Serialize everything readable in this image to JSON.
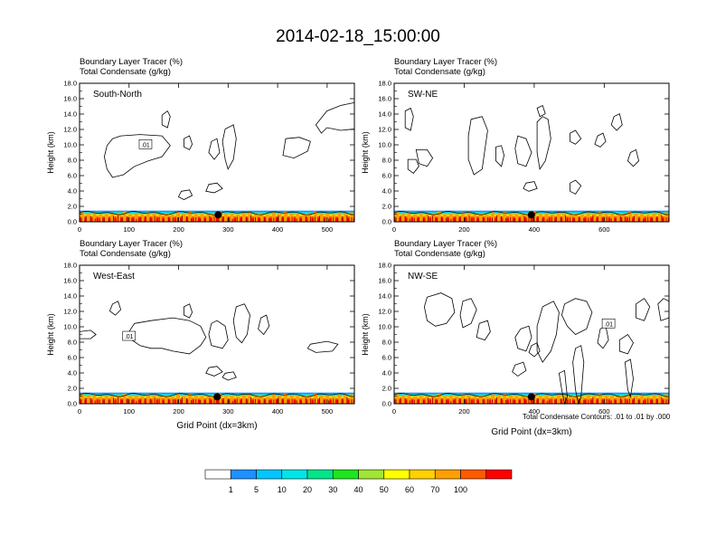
{
  "title": "2014-02-18_15:00:00",
  "subtitle_line1": "Boundary Layer Tracer   (%)",
  "subtitle_line2": "Total Condensate   (g/kg)",
  "contour_note": "Total Condensate Contours: .01 to .01 by .000",
  "colorbar": {
    "colors": [
      "#ffffff",
      "#1e90ff",
      "#00c8ff",
      "#00e6e6",
      "#00e68c",
      "#1ee61e",
      "#a0e632",
      "#ffff00",
      "#ffd200",
      "#ffa000",
      "#ff5a00",
      "#ff0000"
    ],
    "labels": [
      "1",
      "5",
      "10",
      "20",
      "30",
      "40",
      "50",
      "60",
      "70",
      "100"
    ]
  },
  "chart_data": [
    {
      "type": "contour",
      "panel_label": "South-North",
      "ylabel": "Height (km)",
      "xlabel": "",
      "xlim": [
        0,
        555
      ],
      "ylim": [
        0,
        18
      ],
      "xticks": [
        "0",
        "100",
        "200",
        "300",
        "400",
        "500"
      ],
      "yticks": [
        "0.0",
        "2.0",
        "4.0",
        "6.0",
        "8.0",
        "10.0",
        "12.0",
        "14.0",
        "16.0",
        "18.0"
      ],
      "contour_label": ".01",
      "marker_x": 280,
      "marker_y": 0.9
    },
    {
      "type": "contour",
      "panel_label": "SW-NE",
      "ylabel": "Height (km)",
      "xlabel": "",
      "xlim": [
        0,
        785
      ],
      "ylim": [
        0,
        18
      ],
      "xticks": [
        "0",
        "200",
        "400",
        "600"
      ],
      "yticks": [
        "0.0",
        "2.0",
        "4.0",
        "6.0",
        "8.0",
        "10.0",
        "12.0",
        "14.0",
        "16.0",
        "18.0"
      ],
      "contour_label": "",
      "marker_x": 392,
      "marker_y": 0.9
    },
    {
      "type": "contour",
      "panel_label": "West-East",
      "ylabel": "Height (km)",
      "xlabel": "Grid Point (dx=3km)",
      "xlim": [
        0,
        555
      ],
      "ylim": [
        0,
        18
      ],
      "xticks": [
        "0",
        "100",
        "200",
        "300",
        "400",
        "500"
      ],
      "yticks": [
        "0.0",
        "2.0",
        "4.0",
        "6.0",
        "8.0",
        "10.0",
        "12.0",
        "14.0",
        "16.0",
        "18.0"
      ],
      "contour_label": ".01",
      "marker_x": 278,
      "marker_y": 0.9
    },
    {
      "type": "contour",
      "panel_label": "NW-SE",
      "ylabel": "Height (km)",
      "xlabel": "Grid Point (dx=3km)",
      "xlim": [
        0,
        785
      ],
      "ylim": [
        0,
        18
      ],
      "xticks": [
        "0",
        "200",
        "400",
        "600"
      ],
      "yticks": [
        "0.0",
        "2.0",
        "4.0",
        "6.0",
        "8.0",
        "10.0",
        "12.0",
        "14.0",
        "16.0",
        "18.0"
      ],
      "contour_label": ".01",
      "marker_x": 392,
      "marker_y": 0.9
    }
  ]
}
